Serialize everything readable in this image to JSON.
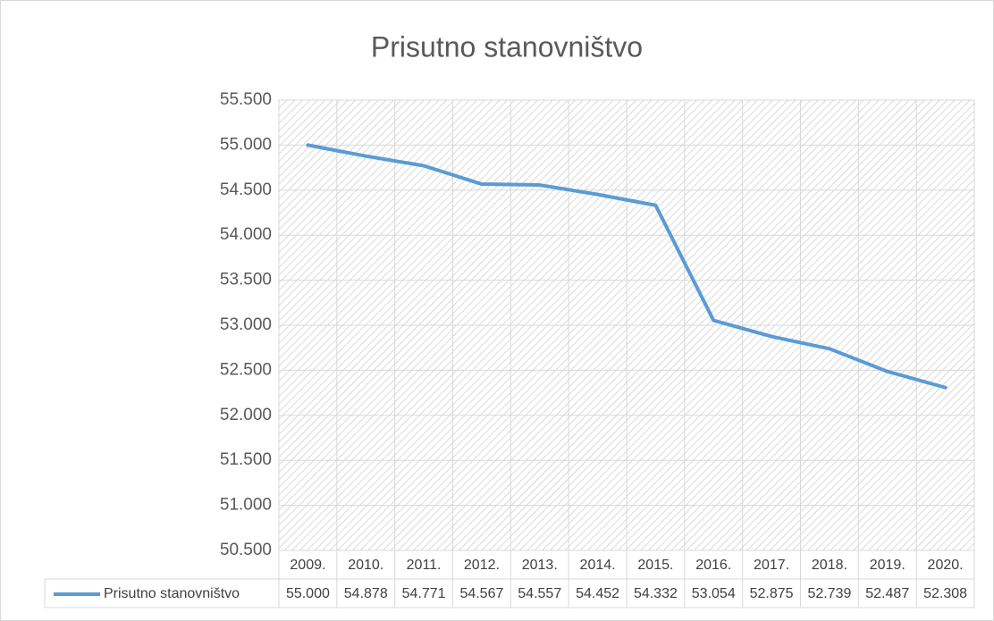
{
  "chart_data": {
    "type": "line",
    "title": "Prisutno stanovništvo",
    "categories": [
      "2009.",
      "2010.",
      "2011.",
      "2012.",
      "2013.",
      "2014.",
      "2015.",
      "2016.",
      "2017.",
      "2018.",
      "2019.",
      "2020."
    ],
    "series": [
      {
        "name": "Prisutno stanovništvo",
        "color": "#5b9bd5",
        "values": [
          55000,
          54878,
          54771,
          54567,
          54557,
          54452,
          54332,
          53054,
          52875,
          52739,
          52487,
          52308
        ],
        "value_labels": [
          "55.000",
          "54.878",
          "54.771",
          "54.567",
          "54.557",
          "54.452",
          "54.332",
          "53.054",
          "52.875",
          "52.739",
          "52.487",
          "52.308"
        ]
      }
    ],
    "ylim": [
      50500,
      55500
    ],
    "yticks": [
      {
        "value": 50500,
        "label": "50.500"
      },
      {
        "value": 51000,
        "label": "51.000"
      },
      {
        "value": 51500,
        "label": "51.500"
      },
      {
        "value": 52000,
        "label": "52.000"
      },
      {
        "value": 52500,
        "label": "52.500"
      },
      {
        "value": 53000,
        "label": "53.000"
      },
      {
        "value": 53500,
        "label": "53.500"
      },
      {
        "value": 54000,
        "label": "54.000"
      },
      {
        "value": 54500,
        "label": "54.500"
      },
      {
        "value": 55000,
        "label": "55.000"
      },
      {
        "value": 55500,
        "label": "55.500"
      }
    ],
    "grid": true
  }
}
